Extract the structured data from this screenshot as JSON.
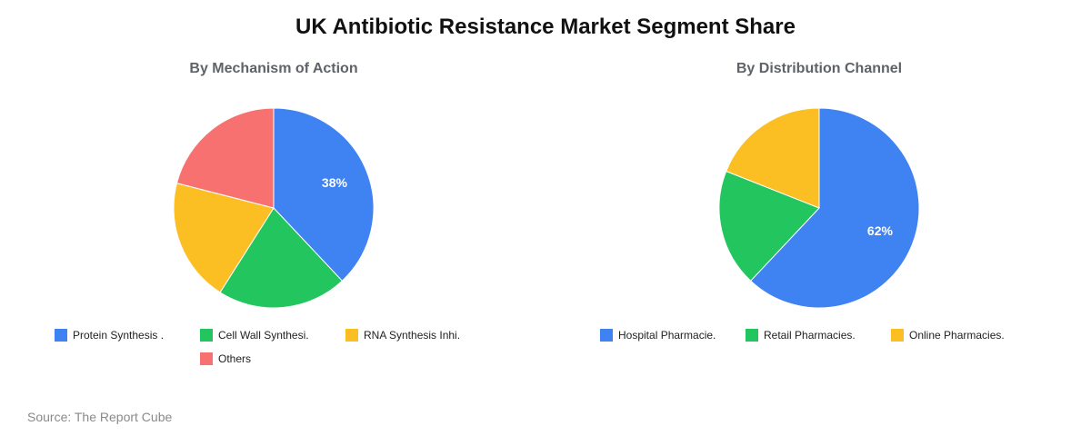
{
  "title": "UK Antibiotic Resistance Market Segment Share",
  "source": "Source: The Report Cube",
  "colors": {
    "blue": "#3f83f2",
    "green": "#22c55e",
    "yellow": "#fbbf24",
    "red": "#f87171"
  },
  "chart_data": [
    {
      "type": "pie",
      "title": "By Mechanism of Action",
      "categories": [
        "Protein Synthesis .",
        "Cell Wall Synthesi.",
        "RNA Synthesis Inhi.",
        "Others"
      ],
      "values": [
        38,
        21,
        20,
        21
      ],
      "colors": [
        "#3f83f2",
        "#22c55e",
        "#fbbf24",
        "#f87171"
      ],
      "data_labels": [
        "38%",
        "",
        "",
        ""
      ],
      "legend_position": "bottom"
    },
    {
      "type": "pie",
      "title": "By Distribution Channel",
      "categories": [
        "Hospital Pharmacie.",
        "Retail Pharmacies.",
        "Online Pharmacies."
      ],
      "values": [
        62,
        19,
        19
      ],
      "colors": [
        "#3f83f2",
        "#22c55e",
        "#fbbf24"
      ],
      "data_labels": [
        "62%",
        "",
        ""
      ],
      "legend_position": "bottom"
    }
  ]
}
